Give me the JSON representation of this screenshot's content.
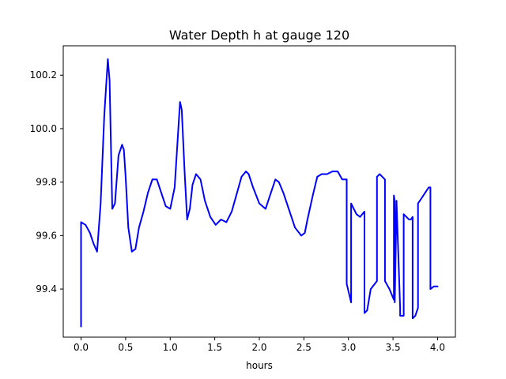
{
  "chart_data": {
    "type": "line",
    "title": "Water Depth h at gauge 120",
    "xlabel": "hours",
    "ylabel": "",
    "xlim": [
      -0.2,
      4.2
    ],
    "ylim": [
      99.22,
      100.31
    ],
    "x_ticks": [
      0.0,
      0.5,
      1.0,
      1.5,
      2.0,
      2.5,
      3.0,
      3.5,
      4.0
    ],
    "x_tick_labels": [
      "0.0",
      "0.5",
      "1.0",
      "1.5",
      "2.0",
      "2.5",
      "3.0",
      "3.5",
      "4.0"
    ],
    "y_ticks": [
      99.4,
      99.6,
      99.8,
      100.0,
      100.2
    ],
    "y_tick_labels": [
      "99.4",
      "99.6",
      "99.8",
      "100.0",
      "100.2"
    ],
    "grid": false,
    "legend": "none",
    "series": [
      {
        "color": "#0000ff",
        "x": [
          0.0,
          0.0,
          0.05,
          0.1,
          0.14,
          0.18,
          0.22,
          0.26,
          0.3,
          0.32,
          0.35,
          0.38,
          0.42,
          0.46,
          0.48,
          0.5,
          0.53,
          0.57,
          0.61,
          0.65,
          0.7,
          0.75,
          0.8,
          0.85,
          0.9,
          0.95,
          1.0,
          1.05,
          1.08,
          1.11,
          1.13,
          1.16,
          1.19,
          1.22,
          1.25,
          1.29,
          1.34,
          1.39,
          1.45,
          1.51,
          1.57,
          1.63,
          1.69,
          1.75,
          1.8,
          1.85,
          1.88,
          1.93,
          2.0,
          2.07,
          2.12,
          2.18,
          2.22,
          2.27,
          2.33,
          2.4,
          2.47,
          2.51,
          2.54,
          2.6,
          2.65,
          2.7,
          2.76,
          2.82,
          2.88,
          2.93,
          2.98,
          2.98,
          3.03,
          3.03,
          3.09,
          3.13,
          3.18,
          3.18,
          3.21,
          3.25,
          3.32,
          3.32,
          3.35,
          3.38,
          3.41,
          3.41,
          3.46,
          3.51,
          3.51,
          3.52,
          3.52,
          3.54,
          3.54,
          3.58,
          3.58,
          3.62,
          3.62,
          3.65,
          3.68,
          3.7,
          3.72,
          3.72,
          3.75,
          3.78,
          3.78,
          3.82,
          3.86,
          3.9,
          3.92,
          3.92,
          3.96,
          4.0
        ],
        "y": [
          99.26,
          99.65,
          99.64,
          99.61,
          99.57,
          99.54,
          99.72,
          100.05,
          100.26,
          100.18,
          99.7,
          99.72,
          99.9,
          99.94,
          99.92,
          99.82,
          99.63,
          99.54,
          99.55,
          99.63,
          99.69,
          99.76,
          99.81,
          99.81,
          99.76,
          99.71,
          99.7,
          99.78,
          99.94,
          100.1,
          100.07,
          99.85,
          99.66,
          99.7,
          99.79,
          99.83,
          99.81,
          99.73,
          99.67,
          99.64,
          99.66,
          99.65,
          99.69,
          99.76,
          99.82,
          99.84,
          99.83,
          99.78,
          99.72,
          99.7,
          99.75,
          99.81,
          99.8,
          99.76,
          99.7,
          99.63,
          99.6,
          99.61,
          99.66,
          99.75,
          99.82,
          99.83,
          99.83,
          99.84,
          99.84,
          99.81,
          99.81,
          99.42,
          99.35,
          99.72,
          99.68,
          99.67,
          99.69,
          99.31,
          99.32,
          99.4,
          99.43,
          99.82,
          99.83,
          99.82,
          99.81,
          99.43,
          99.4,
          99.36,
          99.75,
          99.73,
          99.35,
          99.73,
          99.72,
          99.33,
          99.3,
          99.3,
          99.68,
          99.67,
          99.66,
          99.66,
          99.67,
          99.29,
          99.3,
          99.33,
          99.72,
          99.74,
          99.76,
          99.78,
          99.78,
          99.4,
          99.41,
          99.41
        ]
      }
    ]
  }
}
